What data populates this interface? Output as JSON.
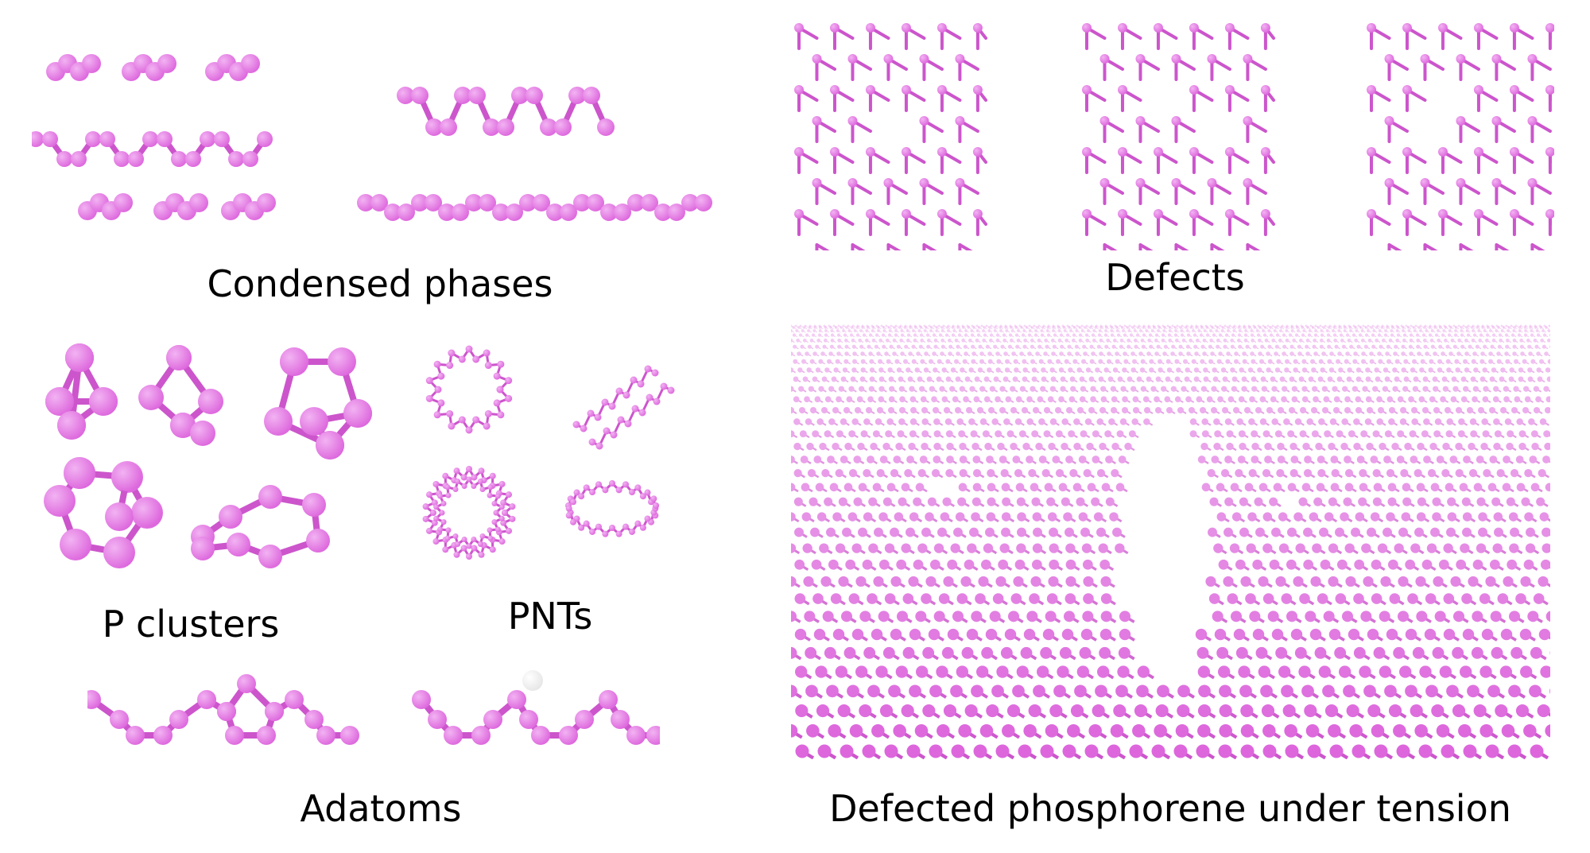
{
  "figure": {
    "captions": {
      "condensed_phases": "Condensed phases",
      "defects": "Defects",
      "p_clusters": "P clusters",
      "pnts": "PNTs",
      "adatoms": "Adatoms",
      "defected_phosphorene": "Defected phosphorene under tension"
    },
    "colors": {
      "atom": "#dd66dd",
      "atom_highlight": "#f2b3f2",
      "bond": "#cc55cc",
      "adatom_h": "#e6e6e6",
      "background": "#ffffff"
    }
  }
}
